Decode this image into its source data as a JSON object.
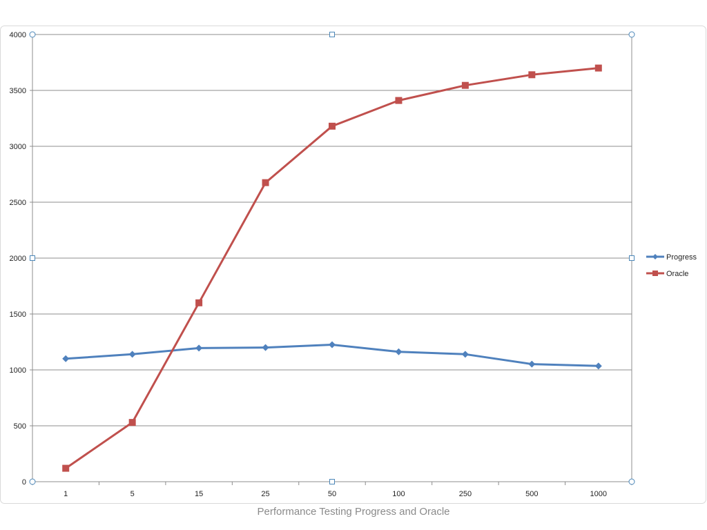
{
  "caption": "Performance Testing Progress and Oracle",
  "chart_data": {
    "type": "line",
    "title": "",
    "xlabel": "",
    "ylabel": "",
    "categories": [
      "1",
      "5",
      "15",
      "25",
      "50",
      "100",
      "250",
      "500",
      "1000"
    ],
    "ylim": [
      0,
      4000
    ],
    "yticks": [
      0,
      500,
      1000,
      1500,
      2000,
      2500,
      3000,
      3500,
      4000
    ],
    "grid": true,
    "legend_position": "right",
    "series": [
      {
        "name": "Progress",
        "color": "#4f81bd",
        "marker": "diamond",
        "values": [
          1100,
          1140,
          1195,
          1200,
          1225,
          1162,
          1140,
          1052,
          1035
        ]
      },
      {
        "name": "Oracle",
        "color": "#c0504d",
        "marker": "square",
        "values": [
          120,
          530,
          1600,
          2675,
          3180,
          3410,
          3545,
          3640,
          3700
        ]
      }
    ]
  }
}
